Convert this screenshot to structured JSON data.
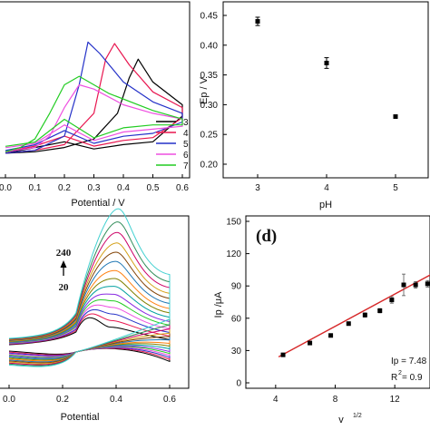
{
  "figure": {
    "cv_ph": {
      "xlabel": "Potential / V",
      "x_ticks": [
        "0.0",
        "0.1",
        "0.2",
        "0.3",
        "0.4",
        "0.5",
        "0.6"
      ],
      "legend": [
        "3",
        "4",
        "5",
        "6",
        "7"
      ],
      "colors": [
        "#000000",
        "#e8164f",
        "#2431c8",
        "#ee4fe0",
        "#22cc22"
      ]
    },
    "ep_ph": {
      "ylabel": "Ep / V",
      "xlabel": "pH",
      "y_ticks": [
        "0.45",
        "0.40",
        "0.35",
        "0.30",
        "0.25",
        "0.20"
      ],
      "x_ticks": [
        "3",
        "4",
        "5"
      ]
    },
    "cv_scan": {
      "xlabel": "Potential",
      "x_ticks": [
        "0.0",
        "0.2",
        "0.4",
        "0.6"
      ],
      "arrow_top_label": "240",
      "arrow_bottom_label": "20",
      "colors": [
        "#000000",
        "#e8164f",
        "#2431c8",
        "#ee4fe0",
        "#22cc22",
        "#8a2be2",
        "#00a0a0",
        "#808000",
        "#ff7f0e",
        "#1f77b4",
        "#7f3f00",
        "#d4a017",
        "#cc0066",
        "#2e8b57",
        "#40d0d0"
      ]
    },
    "ip_v": {
      "panel_label": "(d)",
      "ylabel": "Ip /μA",
      "xlabel": "v",
      "xlabel_sup": "1/2",
      "y_ticks": [
        "150",
        "120",
        "90",
        "60",
        "30",
        "0"
      ],
      "x_ticks": [
        "4",
        "8",
        "12"
      ],
      "fit_text_1": "Ip = 7.48",
      "fit_text_2": "R",
      "fit_text_2_sup": "2",
      "fit_text_3": " = 0.9",
      "fit_color": "#d62728"
    }
  },
  "chart_data": [
    {
      "type": "line",
      "xlabel": "Potential / V",
      "ylabel": "",
      "xlim": [
        0.0,
        0.6
      ],
      "legend": [
        "3",
        "4",
        "5",
        "6",
        "7"
      ],
      "series": [
        {
          "name": "3",
          "x": [
            0.0,
            0.1,
            0.2,
            0.3,
            0.38,
            0.42,
            0.45,
            0.5,
            0.6
          ],
          "y": [
            2,
            3,
            6,
            12,
            30,
            55,
            68,
            52,
            36
          ],
          "color": "#000000"
        },
        {
          "name": "4",
          "x": [
            0.0,
            0.1,
            0.2,
            0.3,
            0.34,
            0.37,
            0.42,
            0.5,
            0.6
          ],
          "y": [
            2,
            4,
            8,
            30,
            68,
            79,
            64,
            45,
            34
          ],
          "color": "#e8164f"
        },
        {
          "name": "5",
          "x": [
            0.0,
            0.1,
            0.2,
            0.25,
            0.28,
            0.32,
            0.4,
            0.5,
            0.6
          ],
          "y": [
            2,
            4,
            14,
            50,
            80,
            72,
            52,
            38,
            30
          ],
          "color": "#2431c8"
        },
        {
          "name": "6",
          "x": [
            0.0,
            0.1,
            0.15,
            0.2,
            0.25,
            0.3,
            0.4,
            0.5,
            0.6
          ],
          "y": [
            3,
            6,
            14,
            34,
            50,
            47,
            36,
            30,
            26
          ],
          "color": "#ee4fe0"
        },
        {
          "name": "7",
          "x": [
            0.0,
            0.05,
            0.1,
            0.15,
            0.2,
            0.25,
            0.35,
            0.5,
            0.6
          ],
          "y": [
            3,
            6,
            12,
            30,
            50,
            56,
            44,
            32,
            26
          ],
          "color": "#22cc22"
        }
      ]
    },
    {
      "type": "scatter",
      "xlabel": "pH",
      "ylabel": "Ep / V",
      "xlim": [
        2.7,
        5.3
      ],
      "ylim": [
        0.18,
        0.47
      ],
      "x": [
        3,
        4,
        5
      ],
      "y": [
        0.44,
        0.37,
        0.28
      ],
      "error": [
        0.007,
        0.009,
        0.0
      ]
    },
    {
      "type": "line",
      "xlabel": "Potential",
      "xlim": [
        0.0,
        0.6
      ],
      "annotations": [
        "240",
        "20"
      ],
      "peak_potential": [
        0.38,
        0.382,
        0.384,
        0.386,
        0.388,
        0.39,
        0.392,
        0.394,
        0.396,
        0.398,
        0.4,
        0.402,
        0.404,
        0.406,
        0.408
      ],
      "peak_current": [
        12,
        17,
        22,
        27,
        32,
        37,
        43,
        49,
        55,
        62,
        69,
        76,
        84,
        92,
        102
      ]
    },
    {
      "type": "scatter",
      "xlabel": "v 1/2",
      "ylabel": "Ip /μA",
      "xlim": [
        2,
        15
      ],
      "ylim": [
        0,
        150
      ],
      "x": [
        4.5,
        6.3,
        7.7,
        8.9,
        10.0,
        11.0,
        11.8,
        12.6,
        13.4,
        14.2,
        14.9
      ],
      "y": [
        26,
        37,
        44,
        55,
        63,
        67,
        77,
        91,
        91,
        92,
        100
      ],
      "error": [
        1,
        1,
        1.5,
        1.5,
        2,
        2,
        3,
        10,
        3,
        3,
        5
      ],
      "fit": {
        "slope": 7.48,
        "intercept": -7.3
      }
    }
  ]
}
